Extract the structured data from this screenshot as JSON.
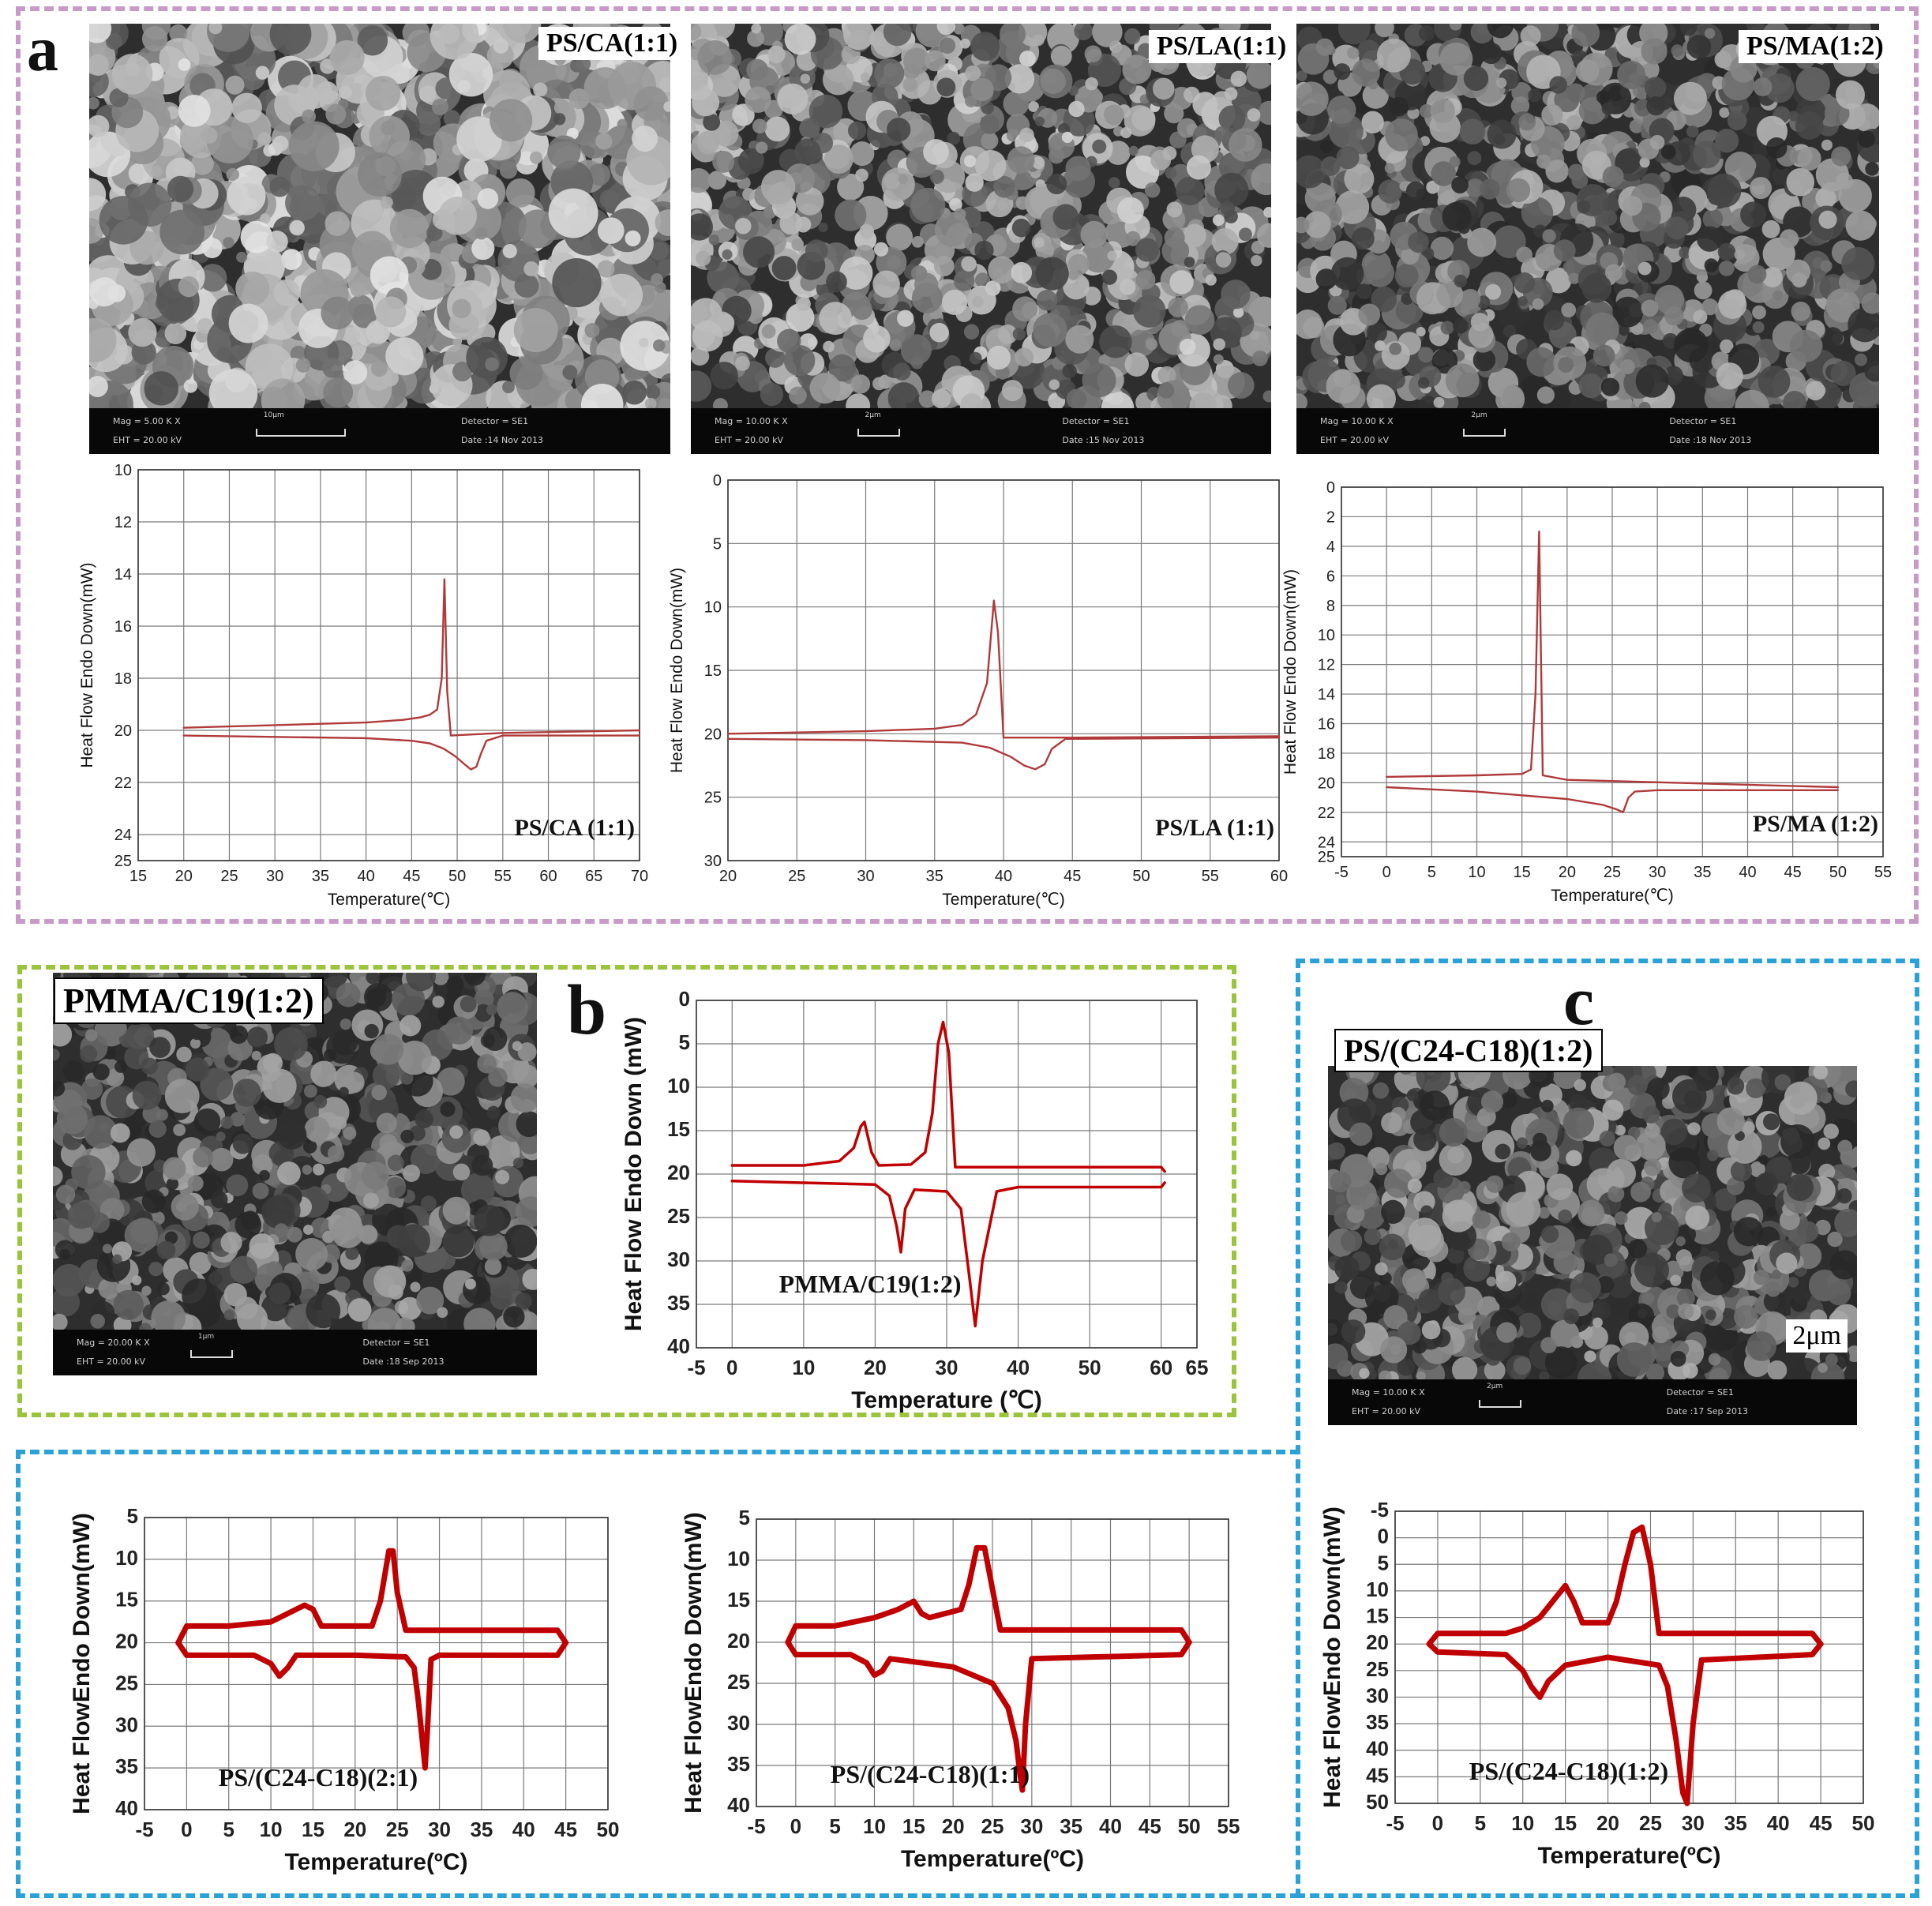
{
  "panels": {
    "a": {
      "letter": "a",
      "color": "#c89ac8"
    },
    "b": {
      "letter": "b",
      "color": "#9ac43c"
    },
    "c": {
      "letter": "c",
      "color": "#2aa2d8"
    }
  },
  "sem": [
    {
      "id": "sem-ps-ca",
      "label": "PS/CA(1:1)",
      "mag": "Mag =  5.00 K X",
      "eht": "EHT = 20.00 kV",
      "detector": "Detector = SE1",
      "date": "Date :14 Nov 2013",
      "scale": "10μm",
      "tone": "#9b9b9b"
    },
    {
      "id": "sem-ps-la",
      "label": "PS/LA(1:1)",
      "mag": "Mag =  10.00 K X",
      "eht": "EHT = 20.00 kV",
      "detector": "Detector = SE1",
      "date": "Date :15 Nov 2013",
      "scale": "2μm",
      "tone": "#8a8a8a"
    },
    {
      "id": "sem-ps-ma",
      "label": "PS/MA(1:2)",
      "mag": "Mag =  10.00 K X",
      "eht": "EHT = 20.00 kV",
      "detector": "Detector = SE1",
      "date": "Date :18 Nov 2013",
      "scale": "2μm",
      "tone": "#6d6d6d"
    },
    {
      "id": "sem-pmma-c19",
      "label": "PMMA/C19(1:2)",
      "mag": "Mag =  20.00 K X",
      "eht": "EHT = 20.00 kV",
      "detector": "Detector = SE1",
      "date": "Date :18 Sep 2013",
      "scale": "1μm",
      "tone": "#606060"
    },
    {
      "id": "sem-ps-c24c18",
      "label": "PS/(C24-C18)(1:2)",
      "mag": "Mag =  10.00 K X",
      "eht": "EHT = 20.00 kV",
      "detector": "Detector = SE1",
      "date": "Date :17 Sep 2013",
      "scale": "2μm",
      "tone": "#666666",
      "scalebar_text": "2μm"
    }
  ],
  "chart_data": [
    {
      "id": "dsc-ps-ca",
      "type": "line",
      "xlabel": "Temperature(℃)",
      "ylabel": "Heat Flow Endo Down(mW)",
      "xlim": [
        15,
        70
      ],
      "ylim": [
        10,
        25
      ],
      "y_inverted": true,
      "xticks": [
        15,
        20,
        25,
        30,
        35,
        40,
        45,
        50,
        55,
        60,
        65,
        70
      ],
      "yticks": [
        10,
        12,
        14,
        16,
        18,
        20,
        22,
        24,
        25
      ],
      "grid": true,
      "annotation": "PS/CA (1:1)",
      "color": "#b03a3a",
      "series": [
        {
          "name": "",
          "x": [
            20,
            30,
            40,
            44,
            46,
            47,
            47.8,
            48.3,
            48.6,
            48.9,
            49.3,
            55,
            70
          ],
          "y": [
            19.9,
            19.8,
            19.7,
            19.6,
            19.5,
            19.4,
            19.2,
            18.0,
            14.2,
            18.5,
            20.2,
            20.1,
            20.0
          ]
        },
        {
          "name": "",
          "x": [
            20,
            30,
            40,
            45,
            47,
            48.5,
            49.8,
            50.8,
            51.5,
            52.1,
            52.6,
            53.2,
            55,
            70
          ],
          "y": [
            20.2,
            20.25,
            20.3,
            20.4,
            20.5,
            20.7,
            21.0,
            21.3,
            21.5,
            21.4,
            20.9,
            20.4,
            20.2,
            20.2
          ]
        }
      ]
    },
    {
      "id": "dsc-ps-la",
      "type": "line",
      "xlabel": "Temperature(℃)",
      "ylabel": "Heat Flow Endo Down(mW)",
      "xlim": [
        20,
        60
      ],
      "ylim": [
        0,
        30
      ],
      "y_inverted": true,
      "xticks": [
        20,
        25,
        30,
        35,
        40,
        45,
        50,
        55,
        60
      ],
      "yticks": [
        0,
        5,
        10,
        15,
        20,
        25,
        30
      ],
      "grid": true,
      "annotation": "PS/LA (1:1)",
      "color": "#b03a3a",
      "series": [
        {
          "name": "",
          "x": [
            20,
            30,
            35,
            37,
            38,
            38.8,
            39.3,
            39.6,
            40,
            45,
            60
          ],
          "y": [
            20.0,
            19.8,
            19.6,
            19.3,
            18.5,
            16.0,
            9.5,
            12.0,
            20.3,
            20.3,
            20.2
          ]
        },
        {
          "name": "",
          "x": [
            20,
            30,
            37,
            39,
            40.5,
            41.5,
            42.3,
            43.0,
            43.5,
            44.5,
            60
          ],
          "y": [
            20.4,
            20.5,
            20.7,
            21.1,
            21.8,
            22.5,
            22.8,
            22.4,
            21.2,
            20.4,
            20.3
          ]
        }
      ]
    },
    {
      "id": "dsc-ps-ma",
      "type": "line",
      "xlabel": "Temperature(℃)",
      "ylabel": "Heat Flow Endo Down(mW)",
      "xlim": [
        -5,
        55
      ],
      "ylim": [
        0,
        25
      ],
      "y_inverted": true,
      "xticks": [
        -5,
        0,
        5,
        10,
        15,
        20,
        25,
        30,
        35,
        40,
        45,
        50,
        55
      ],
      "yticks": [
        0,
        2,
        4,
        6,
        8,
        10,
        12,
        14,
        16,
        18,
        20,
        22,
        24,
        25
      ],
      "grid": true,
      "annotation": "PS/MA (1:2)",
      "color": "#b03a3a",
      "series": [
        {
          "name": "",
          "x": [
            0,
            10,
            15,
            16,
            16.5,
            16.9,
            17.3,
            20,
            50
          ],
          "y": [
            19.6,
            19.5,
            19.4,
            19.1,
            14.0,
            3.0,
            19.5,
            19.8,
            20.3
          ]
        },
        {
          "name": "",
          "x": [
            0,
            10,
            20,
            24,
            25.5,
            26.2,
            26.8,
            27.5,
            30,
            50
          ],
          "y": [
            20.3,
            20.6,
            21.1,
            21.5,
            21.8,
            22.0,
            21.0,
            20.6,
            20.5,
            20.5
          ]
        }
      ]
    },
    {
      "id": "dsc-pmma-c19",
      "type": "line",
      "xlabel": "Temperature (℃)",
      "ylabel": "Heat Flow Endo Down (mW)",
      "xlim": [
        -5,
        65
      ],
      "ylim": [
        0,
        40
      ],
      "y_inverted": true,
      "xticks": [
        -5,
        0,
        10,
        20,
        30,
        40,
        50,
        60,
        65
      ],
      "xtick_labels": [
        "-5",
        "0",
        "10",
        "20",
        "30",
        "40",
        "50",
        "60",
        "65"
      ],
      "yticks": [
        0,
        5,
        10,
        15,
        20,
        25,
        30,
        35,
        40
      ],
      "grid": true,
      "annotation": "PMMA/C19(1:2)",
      "color": "#c00000",
      "series": [
        {
          "name": "",
          "x": [
            0,
            10,
            15,
            17,
            18,
            18.5,
            19.5,
            20.5,
            25,
            27,
            28,
            28.8,
            29.5,
            30.3,
            31.2,
            40,
            60,
            60.5
          ],
          "y": [
            19.0,
            19.0,
            18.5,
            17.0,
            14.5,
            14.0,
            17.5,
            19.0,
            18.9,
            17.5,
            13.0,
            5.0,
            2.5,
            6.0,
            19.2,
            19.2,
            19.2,
            19.7
          ]
        },
        {
          "name": "",
          "x": [
            0,
            10,
            20,
            22,
            23,
            23.6,
            24.2,
            25.5,
            30,
            32,
            33.2,
            34,
            35,
            37,
            40,
            60,
            60.5
          ],
          "y": [
            20.8,
            21.0,
            21.2,
            22.5,
            26.0,
            29.0,
            24.0,
            21.8,
            22.0,
            24.0,
            32.0,
            37.5,
            30.0,
            22.0,
            21.5,
            21.5,
            21.0
          ]
        }
      ]
    },
    {
      "id": "dsc-ps-c24c18-21",
      "type": "line",
      "xlabel": "Temperature(ºC)",
      "ylabel": "Heat FlowEndo Down(mW)",
      "xlim": [
        -5,
        50
      ],
      "ylim": [
        5,
        40
      ],
      "y_inverted": true,
      "xticks": [
        -5,
        0,
        5,
        10,
        15,
        20,
        25,
        30,
        35,
        40,
        45,
        50
      ],
      "yticks": [
        5,
        10,
        15,
        20,
        25,
        30,
        35,
        40
      ],
      "grid": true,
      "annotation": "PS/(C24-C18)(2:1)",
      "color": "#c00000",
      "series": [
        {
          "name": "",
          "x": [
            -1,
            0,
            5,
            10,
            12,
            14,
            15,
            16,
            22,
            23,
            24,
            24.5,
            25,
            26,
            44,
            45
          ],
          "y": [
            20,
            18,
            18,
            17.5,
            16.5,
            15.5,
            16.0,
            18.0,
            18.0,
            15.0,
            9.0,
            9.0,
            14.0,
            18.5,
            18.5,
            20
          ]
        },
        {
          "name": "",
          "x": [
            -1,
            0,
            8,
            10,
            11,
            12,
            13,
            20,
            26,
            27,
            27.5,
            28,
            28.3,
            28.6,
            29,
            30,
            44,
            45
          ],
          "y": [
            20,
            21.5,
            21.5,
            22.5,
            24.0,
            23.0,
            21.5,
            21.5,
            21.7,
            23.0,
            27.0,
            32.0,
            35.0,
            30.0,
            22.0,
            21.5,
            21.5,
            20
          ]
        }
      ]
    },
    {
      "id": "dsc-ps-c24c18-11",
      "type": "line",
      "xlabel": "Temperature(ºC)",
      "ylabel": "Heat FlowEndo Down(mW)",
      "xlim": [
        -5,
        55
      ],
      "ylim": [
        5,
        40
      ],
      "y_inverted": true,
      "xticks": [
        -5,
        0,
        5,
        10,
        15,
        20,
        25,
        30,
        35,
        40,
        45,
        50,
        55
      ],
      "yticks": [
        5,
        10,
        15,
        20,
        25,
        30,
        35,
        40
      ],
      "grid": true,
      "annotation": "PS/(C24-C18)(1:1)",
      "color": "#c00000",
      "series": [
        {
          "name": "",
          "x": [
            -1,
            0,
            5,
            10,
            13,
            15,
            16,
            17,
            21,
            22,
            23,
            24,
            25,
            26,
            49,
            50
          ],
          "y": [
            20,
            18,
            18,
            17,
            16,
            15,
            16.5,
            17,
            16,
            13,
            8.5,
            8.5,
            13.5,
            18.5,
            18.5,
            20
          ]
        },
        {
          "name": "",
          "x": [
            -1,
            0,
            7,
            9,
            10,
            11,
            12,
            20,
            25,
            27,
            28,
            28.5,
            28.8,
            29.2,
            30,
            49,
            50
          ],
          "y": [
            20,
            21.5,
            21.5,
            22.5,
            24,
            23.5,
            22,
            23,
            25,
            28,
            32,
            36,
            38,
            30,
            22,
            21.5,
            20
          ]
        }
      ]
    },
    {
      "id": "dsc-ps-c24c18-12",
      "type": "line",
      "xlabel": "Temperature(ºC)",
      "ylabel": "Heat FlowEndo Down(mW)",
      "xlim": [
        -5,
        50
      ],
      "ylim": [
        -5,
        50
      ],
      "y_inverted": true,
      "xticks": [
        -5,
        0,
        5,
        10,
        15,
        20,
        25,
        30,
        35,
        40,
        45,
        50
      ],
      "yticks": [
        -5,
        0,
        5,
        10,
        15,
        20,
        25,
        30,
        35,
        40,
        45,
        50
      ],
      "grid": true,
      "annotation": "PS/(C24-C18)(1:2)",
      "color": "#c00000",
      "series": [
        {
          "name": "",
          "x": [
            -1,
            0,
            8,
            10,
            12,
            14,
            15,
            16,
            17,
            20,
            21,
            22,
            23,
            24,
            25,
            26,
            44,
            45
          ],
          "y": [
            20,
            18,
            18,
            17,
            15,
            11,
            9,
            12,
            16,
            16,
            12,
            5,
            -1,
            -2,
            5,
            18,
            18,
            20
          ]
        },
        {
          "name": "",
          "x": [
            -1,
            0,
            8,
            10,
            11,
            12,
            13,
            15,
            20,
            26,
            27,
            28,
            28.8,
            29.3,
            30,
            31,
            44,
            45
          ],
          "y": [
            20,
            21.5,
            22,
            25,
            28,
            30,
            27,
            24,
            22.5,
            24,
            28,
            38,
            48,
            50,
            35,
            23,
            22,
            20
          ]
        }
      ]
    }
  ]
}
